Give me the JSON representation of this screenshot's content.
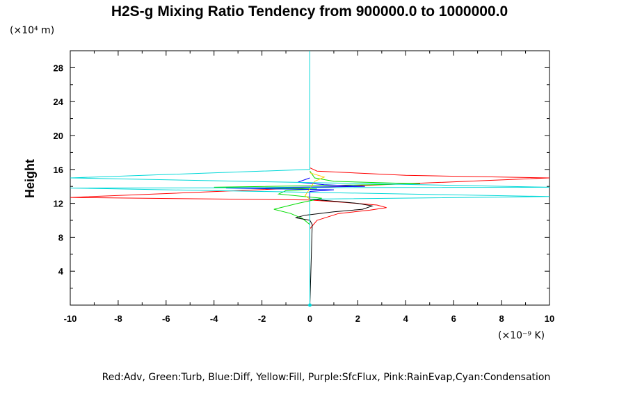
{
  "chart_data": {
    "type": "line",
    "title": "H2S-g Mixing Ratio Tendency from 900000.0 to 1000000.0",
    "ylabel": "Height",
    "y_unit": "(×10⁴ m)",
    "x_unit": "(×10⁻⁹ K)",
    "xlim": [
      -10,
      10
    ],
    "ylim": [
      0,
      30
    ],
    "x_ticks": [
      -10,
      -8,
      -6,
      -4,
      -2,
      0,
      2,
      4,
      6,
      8,
      10
    ],
    "y_ticks": [
      4,
      8,
      12,
      16,
      20,
      24,
      28
    ],
    "legend_text": "Red:Adv, Green:Turb, Blue:Diff, Yellow:Fill, Purple:SfcFlux, Pink:RainEvap,Cyan:Condensation",
    "series": [
      {
        "color": "#ff0000",
        "x": [
          0,
          0.3,
          4,
          10,
          10,
          -10,
          -10,
          0,
          1.5,
          2.8,
          3.2,
          2.5,
          1.2,
          0.3,
          0,
          0
        ],
        "y": [
          16.2,
          15.8,
          15.3,
          15.0,
          15.0,
          12.7,
          12.7,
          12.4,
          12.1,
          11.8,
          11.5,
          11.2,
          10.8,
          10.0,
          9.0,
          0
        ]
      },
      {
        "color": "#00dd00",
        "x": [
          0,
          0.2,
          1.0,
          4.6,
          0.5,
          -4.0,
          0.3,
          -1.0,
          -1.3,
          0.5,
          -0.5,
          -1.5,
          -0.8,
          -0.3,
          0,
          0
        ],
        "y": [
          15.8,
          15.0,
          14.6,
          14.3,
          14.1,
          13.9,
          13.7,
          13.5,
          13.1,
          12.6,
          12.0,
          11.3,
          10.8,
          10.2,
          9.5,
          0
        ]
      },
      {
        "color": "#0000ff",
        "x": [
          0,
          -0.5,
          0.6,
          2.3,
          -3.5,
          1.0,
          0,
          0
        ],
        "y": [
          15.0,
          14.5,
          14.2,
          14.0,
          13.8,
          13.6,
          13.4,
          0
        ]
      },
      {
        "color": "#ffcc00",
        "x": [
          0,
          0.6,
          0.2,
          -0.2,
          0,
          0
        ],
        "y": [
          15.6,
          15.1,
          14.6,
          12.9,
          12.5,
          0
        ]
      },
      {
        "color": "#000000",
        "x": [
          0,
          0.8,
          2.0,
          2.6,
          2.2,
          1.0,
          -0.2,
          -0.6,
          0,
          0.1,
          0
        ],
        "y": [
          12.5,
          12.3,
          12.0,
          11.7,
          11.3,
          11.0,
          10.6,
          10.3,
          10.0,
          9.5,
          0
        ]
      },
      {
        "color": "#00d8d8",
        "x": [
          0,
          0,
          -10,
          -10,
          10,
          10,
          -10,
          -10,
          10,
          10,
          0,
          0
        ],
        "y": [
          30,
          16.0,
          15.0,
          15.0,
          13.9,
          13.9,
          13.8,
          13.8,
          12.8,
          12.8,
          12.5,
          0
        ]
      }
    ]
  }
}
